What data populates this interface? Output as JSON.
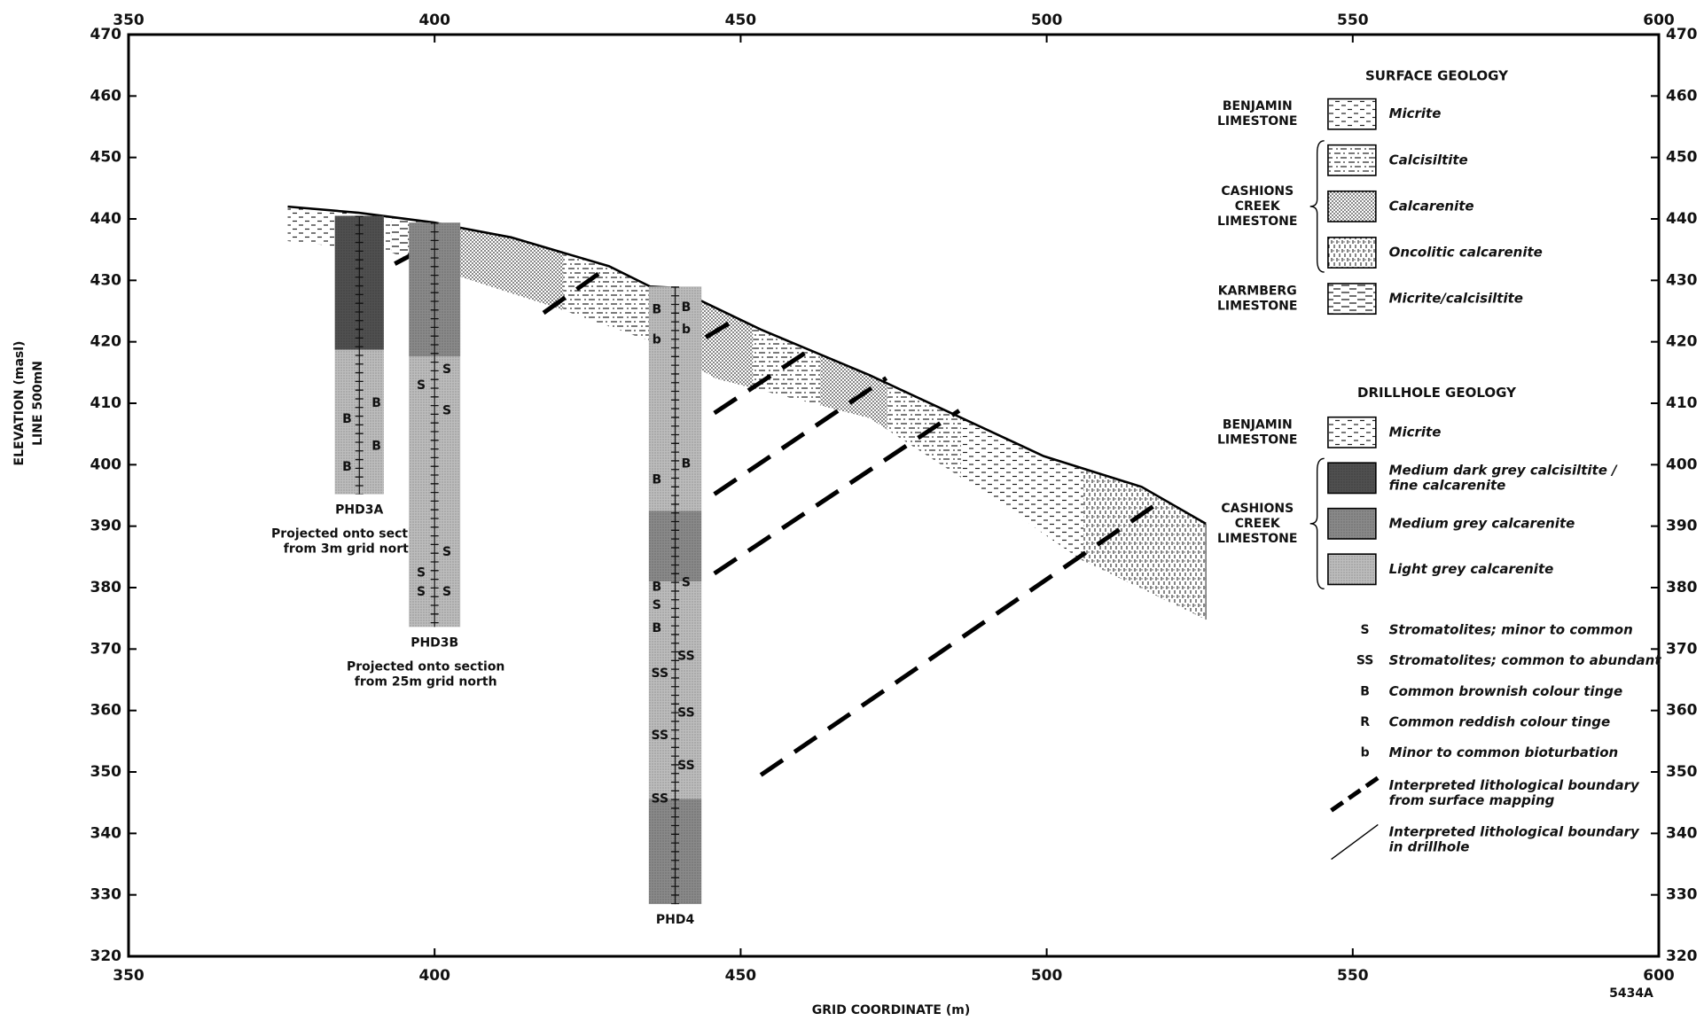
{
  "chart_data": {
    "type": "cross-section",
    "x_label": "GRID COORDINATE (m)",
    "y_label": [
      "ELEVATION (masl)",
      "LINE 500mN"
    ],
    "figure_id": "5434A",
    "xlim": [
      350,
      600
    ],
    "xticks": [
      350,
      400,
      450,
      500,
      550,
      600
    ],
    "ylim": [
      320,
      470
    ],
    "yticks": [
      320,
      330,
      340,
      350,
      360,
      370,
      380,
      390,
      400,
      410,
      420,
      430,
      440,
      450,
      460,
      470
    ],
    "surface": {
      "x": [
        376,
        387.6,
        400,
        404.5,
        412.5,
        428.5,
        435.2,
        439.1,
        453.3,
        471,
        499.5,
        515.5,
        526
      ],
      "y": [
        442,
        441,
        439.4,
        438.5,
        437,
        432.3,
        429,
        428.8,
        422,
        414.6,
        401.4,
        396.4,
        390.4
      ],
      "base_x": [
        376,
        393,
        404.5,
        420,
        435.6,
        446,
        471,
        489,
        505.5,
        526
      ],
      "base_y": [
        436.4,
        434.5,
        430.5,
        425.5,
        420,
        414,
        407.6,
        396,
        384.6,
        374.8
      ]
    },
    "legend": {
      "surface": {
        "title": "SURFACE GEOLOGY",
        "groups": [
          {
            "label": [
              "BENJAMIN",
              "LIMESTONE"
            ],
            "items": [
              {
                "label": "Micrite",
                "pattern": "micrite",
                "x_ranges": [
                  [
                    376,
                    393
                  ],
                  [
                    486,
                    506
                  ]
                ]
              }
            ]
          },
          {
            "label": [
              "CASHIONS",
              "CREEK",
              "LIMESTONE"
            ],
            "items": [
              {
                "label": "Calcisiltite",
                "pattern": "calcisiltite",
                "x_ranges": [
                  [
                    421,
                    436
                  ],
                  [
                    452,
                    463
                  ],
                  [
                    474,
                    486
                  ]
                ]
              },
              {
                "label": "Calcarenite",
                "pattern": "calcarenite",
                "x_ranges": [
                  [
                    404,
                    421
                  ],
                  [
                    436,
                    452
                  ],
                  [
                    463,
                    474
                  ]
                ]
              },
              {
                "label": "Oncolitic calcarenite",
                "pattern": "oncolitic",
                "x_ranges": [
                  [
                    506,
                    526
                  ]
                ]
              }
            ]
          },
          {
            "label": [
              "KARMBERG",
              "LIMESTONE"
            ],
            "items": [
              {
                "label": "Micrite/calcisiltite",
                "pattern": "micrite-calcisiltite",
                "x_ranges": [
                  [
                    393,
                    404
                  ]
                ]
              }
            ]
          }
        ]
      },
      "drillhole": {
        "title": "DRILLHOLE GEOLOGY",
        "groups": [
          {
            "label": [
              "BENJAMIN",
              "LIMESTONE"
            ],
            "items": [
              {
                "label": "Micrite",
                "pattern": "micrite"
              }
            ]
          },
          {
            "label": [
              "CASHIONS",
              "CREEK",
              "LIMESTONE"
            ],
            "items": [
              {
                "label": [
                  "Medium dark grey calcisiltite /",
                  "fine calcarenite"
                ],
                "color": "#505050"
              },
              {
                "label": "Medium grey calcarenite",
                "color": "#8a8a8a"
              },
              {
                "label": "Light grey calcarenite",
                "color": "#bdbdbd"
              }
            ]
          }
        ]
      },
      "symbols": [
        {
          "symbol": "S",
          "label": "Stromatolites; minor to common"
        },
        {
          "symbol": "SS",
          "label": "Stromatolites; common to abundant"
        },
        {
          "symbol": "B",
          "label": "Common brownish colour tinge"
        },
        {
          "symbol": "R",
          "label": "Common reddish colour tinge"
        },
        {
          "symbol": "b",
          "label": "Minor to common bioturbation"
        }
      ],
      "lines": [
        {
          "label": [
            "Interpreted lithological boundary",
            "from surface mapping"
          ],
          "style": "dashed"
        },
        {
          "label": [
            "Interpreted lithological boundary",
            "in drillhole"
          ],
          "style": "solid"
        }
      ]
    },
    "boundaries": [
      {
        "x": [
          393.5,
          404.5
        ],
        "y": [
          432.7,
          438.5
        ]
      },
      {
        "x": [
          417.8,
          428.5
        ],
        "y": [
          424.7,
          432.3
        ]
      },
      {
        "x": [
          438.6,
          448.9
        ],
        "y": [
          417.3,
          423.5
        ]
      },
      {
        "x": [
          445.7,
          461.3
        ],
        "y": [
          408.4,
          418.7
        ]
      },
      {
        "x": [
          445.7,
          473.8
        ],
        "y": [
          395.2,
          414.1
        ]
      },
      {
        "x": [
          445.7,
          485.7
        ],
        "y": [
          382.3,
          408.8
        ]
      },
      {
        "x": [
          453.3,
          519
        ],
        "y": [
          349.5,
          394.3
        ]
      }
    ],
    "drillholes": [
      {
        "name": "PHD3A",
        "x": [
          383.7,
          391.7
        ],
        "note": [
          "Projected onto section",
          "from 3m grid north"
        ],
        "intervals": [
          {
            "top": 440.5,
            "bottom": 418.7,
            "color": "#505050"
          },
          {
            "top": 418.7,
            "bottom": 395.2,
            "color": "#bdbdbd"
          }
        ],
        "symbols": [
          {
            "label": "B",
            "x": 390.5,
            "y": 410
          },
          {
            "label": "B",
            "x": 385.7,
            "y": 407.4
          },
          {
            "label": "B",
            "x": 390.5,
            "y": 403
          },
          {
            "label": "B",
            "x": 385.7,
            "y": 399.6
          }
        ]
      },
      {
        "name": "PHD3B",
        "x": [
          395.8,
          404.2
        ],
        "note": [
          "Projected onto section",
          "from 25m grid north"
        ],
        "intervals": [
          {
            "top": 439.4,
            "bottom": 417.6,
            "color": "#8a8a8a"
          },
          {
            "top": 417.6,
            "bottom": 373.6,
            "color": "#bdbdbd"
          }
        ],
        "symbols": [
          {
            "label": "S",
            "x": 402,
            "y": 415.5
          },
          {
            "label": "S",
            "x": 397.8,
            "y": 412.9
          },
          {
            "label": "S",
            "x": 402,
            "y": 408.8
          },
          {
            "label": "S",
            "x": 402,
            "y": 385.8
          },
          {
            "label": "S",
            "x": 397.8,
            "y": 382.4
          },
          {
            "label": "S",
            "x": 402,
            "y": 379.3
          },
          {
            "label": "S",
            "x": 397.8,
            "y": 379.3
          }
        ]
      },
      {
        "name": "PHD4",
        "x": [
          435,
          443.6
        ],
        "note": [],
        "intervals": [
          {
            "top": 429,
            "bottom": 392.5,
            "color": "#bdbdbd"
          },
          {
            "top": 392.5,
            "bottom": 381,
            "color": "#8a8a8a"
          },
          {
            "top": 381,
            "bottom": 345.6,
            "color": "#bdbdbd"
          },
          {
            "top": 345.6,
            "bottom": 328.5,
            "color": "#8a8a8a"
          }
        ],
        "symbols": [
          {
            "label": "B",
            "x": 436.3,
            "y": 425.2
          },
          {
            "label": "B",
            "x": 441.1,
            "y": 425.6
          },
          {
            "label": "b",
            "x": 436.3,
            "y": 420.3
          },
          {
            "label": "b",
            "x": 441.1,
            "y": 422
          },
          {
            "label": "B",
            "x": 441.1,
            "y": 400.1
          },
          {
            "label": "B",
            "x": 436.3,
            "y": 397.5
          },
          {
            "label": "S",
            "x": 441.1,
            "y": 380.8
          },
          {
            "label": "B",
            "x": 436.3,
            "y": 380.1
          },
          {
            "label": "S",
            "x": 436.3,
            "y": 377.1
          },
          {
            "label": "B",
            "x": 436.3,
            "y": 373.4
          },
          {
            "label": "SS",
            "x": 441.1,
            "y": 368.8
          },
          {
            "label": "SS",
            "x": 436.8,
            "y": 366
          },
          {
            "label": "SS",
            "x": 441.1,
            "y": 359.6
          },
          {
            "label": "SS",
            "x": 436.8,
            "y": 355.9
          },
          {
            "label": "SS",
            "x": 441.1,
            "y": 351
          },
          {
            "label": "SS",
            "x": 436.8,
            "y": 345.6
          }
        ]
      }
    ]
  }
}
